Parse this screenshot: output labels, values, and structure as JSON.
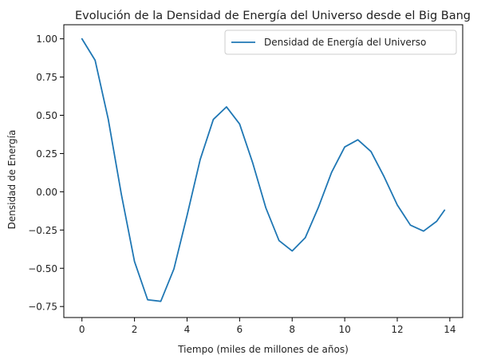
{
  "chart_data": {
    "type": "line",
    "title": "Evolución de la Densidad de Energía del Universo desde el Big Bang",
    "xlabel": "Tiempo (miles de millones de años)",
    "ylabel": "Densidad de Energía",
    "xlim": [
      -0.69,
      14.49
    ],
    "ylim": [
      -0.822,
      1.092
    ],
    "xticks": [
      0,
      2,
      4,
      6,
      8,
      10,
      12,
      14
    ],
    "xtick_labels": [
      "0",
      "2",
      "4",
      "6",
      "8",
      "10",
      "12",
      "14"
    ],
    "yticks": [
      -0.75,
      -0.5,
      -0.25,
      0.0,
      0.25,
      0.5,
      0.75,
      1.0
    ],
    "ytick_labels": [
      "−0.75",
      "−0.50",
      "−0.25",
      "0.00",
      "0.25",
      "0.50",
      "0.75",
      "1.00"
    ],
    "grid": false,
    "legend_position": "upper right",
    "series": [
      {
        "name": "Densidad de Energía del Universo",
        "color": "#1f77b4",
        "x": [
          0.0,
          0.5,
          1.0,
          1.5,
          2.0,
          2.5,
          3.0,
          3.5,
          4.0,
          4.5,
          5.0,
          5.5,
          6.0,
          6.5,
          7.0,
          7.5,
          8.0,
          8.5,
          9.0,
          9.5,
          10.0,
          10.5,
          11.0,
          11.5,
          12.0,
          12.5,
          13.0,
          13.5,
          13.8
        ],
        "y": [
          1.0,
          0.86,
          0.475,
          -0.017,
          -0.456,
          -0.706,
          -0.716,
          -0.504,
          -0.155,
          0.211,
          0.473,
          0.555,
          0.443,
          0.188,
          -0.106,
          -0.319,
          -0.387,
          -0.3,
          -0.101,
          0.127,
          0.293,
          0.34,
          0.263,
          0.098,
          -0.086,
          -0.218,
          -0.257,
          -0.193,
          -0.12
        ]
      }
    ]
  }
}
